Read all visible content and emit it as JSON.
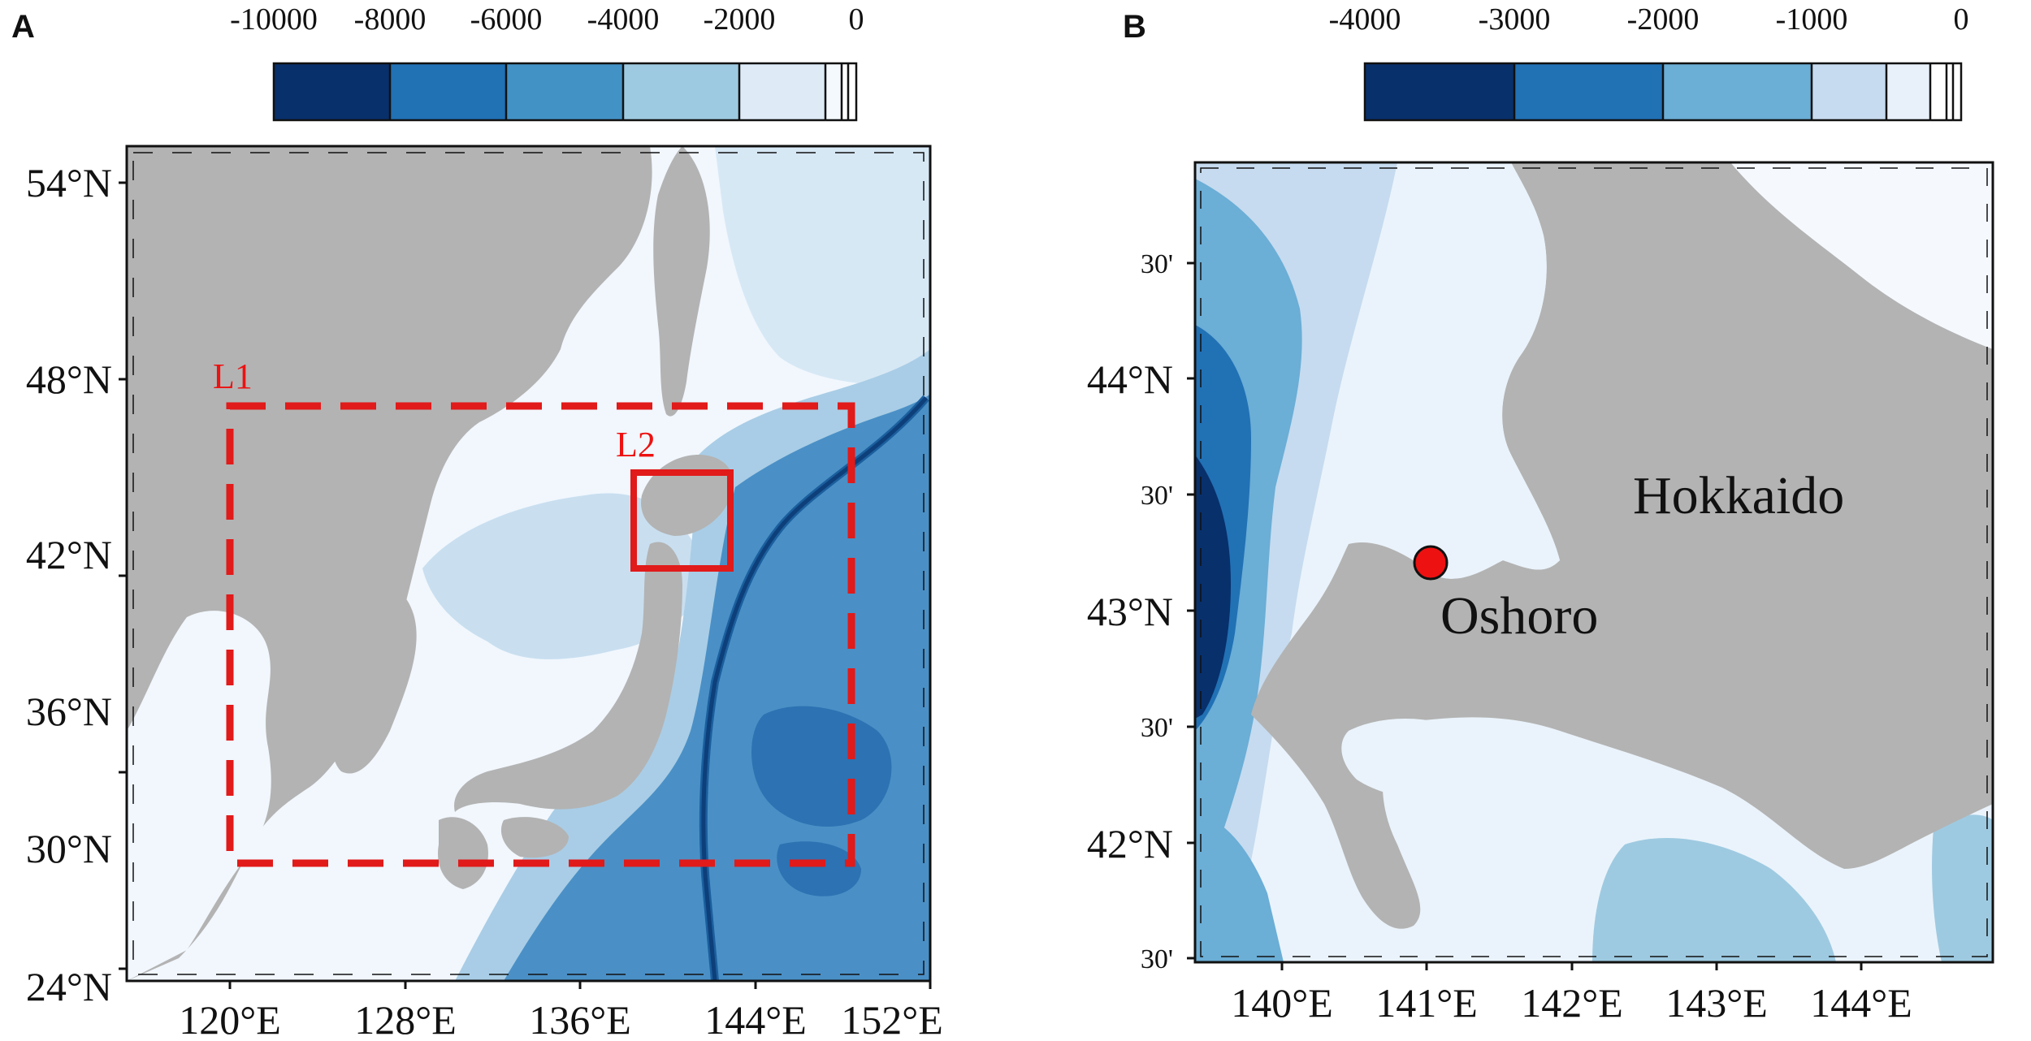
{
  "panel_a": {
    "letter": "A",
    "colorbar": {
      "ticks": [
        "-10000",
        "-8000",
        "-6000",
        "-4000",
        "-2000",
        "0"
      ],
      "colors": [
        "#08306b",
        "#2171b5",
        "#4292c6",
        "#9ecae1",
        "#deebf7",
        "#f4f9fe",
        "#ffffff"
      ]
    },
    "lat_labels": [
      "54°N",
      "48°N",
      "42°N",
      "36°N",
      "30°N",
      "24°N"
    ],
    "lon_labels": [
      "120°E",
      "128°E",
      "136°E",
      "144°E",
      "152°E"
    ],
    "boxes": {
      "l1": "L1",
      "l2": "L2"
    }
  },
  "panel_b": {
    "letter": "B",
    "colorbar": {
      "ticks": [
        "-4000",
        "-3000",
        "-2000",
        "-1000",
        "0"
      ],
      "colors": [
        "#08306b",
        "#2171b5",
        "#6baed6",
        "#c6dbef",
        "#e8f1fa",
        "#ffffff",
        "#ffffff"
      ]
    },
    "lat_labels": [
      "30'",
      "44°N",
      "30'",
      "43°N",
      "30'",
      "42°N",
      "30'"
    ],
    "lon_labels": [
      "140°E",
      "141°E",
      "142°E",
      "143°E",
      "144°E"
    ],
    "places": {
      "island": "Hokkaido",
      "station": "Oshoro"
    }
  },
  "colors": {
    "land": "#b3b3b3",
    "box": "#e11a1a",
    "station": "#ee1111"
  }
}
